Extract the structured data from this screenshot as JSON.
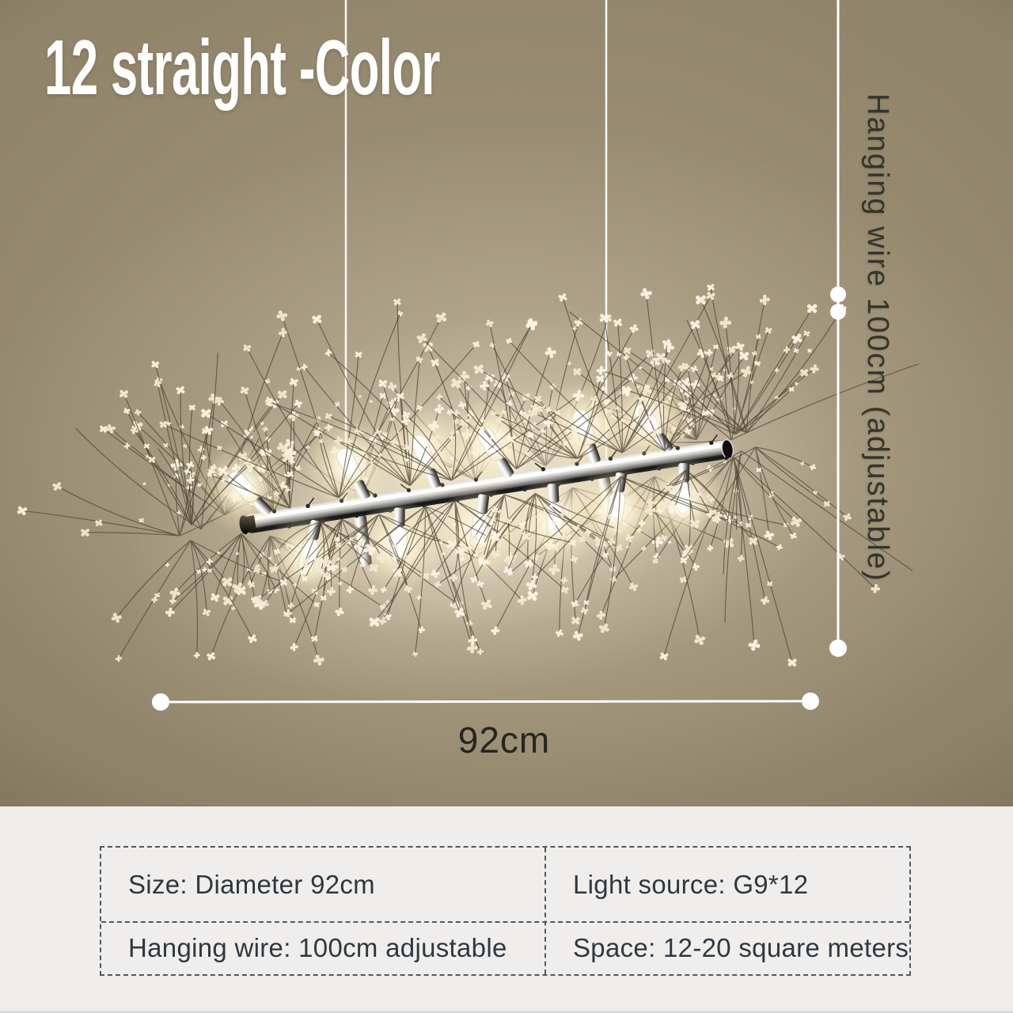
{
  "title": "12 straight -Color",
  "measurements": {
    "hanging_wire_label": "Hanging wire 100cm (adjustable)",
    "width_label": "92cm"
  },
  "specs": {
    "cells": [
      "Size: Diameter 92cm",
      "Light source: G9*12",
      "Hanging wire: 100cm adjustable",
      "Space: 12-20 square meters"
    ]
  },
  "colors": {
    "bg": "#8d8167",
    "bg-light": "#a2957a",
    "bg-dark": "#6d6450",
    "panel": "#f0eeec",
    "spec-text": "#2e3840",
    "border-dash": "#53585e",
    "measure": "#ffffff",
    "label-dark": "#35342c",
    "title": "#ffffff",
    "glow-cream": "#faf0d8",
    "stem-brown": "#4a4132"
  }
}
